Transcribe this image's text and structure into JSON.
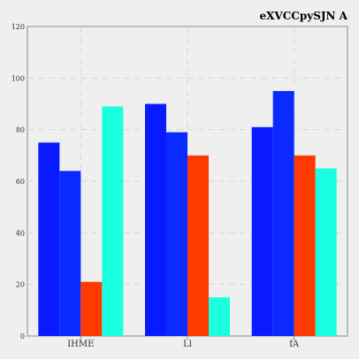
{
  "chart_data": {
    "type": "bar",
    "title": "eXVCCpySJN A",
    "xlabel": "",
    "ylabel": "",
    "categories": [
      "IHME",
      "Ll",
      "fA"
    ],
    "series": [
      {
        "values": [
          75,
          90,
          81
        ],
        "color": "#0a1aff"
      },
      {
        "values": [
          64,
          79,
          95
        ],
        "color": "#0a2aff"
      },
      {
        "values": [
          21,
          70,
          70
        ],
        "color": "#ff3a00"
      },
      {
        "values": [
          89,
          15,
          65
        ],
        "color": "#19ffe0"
      }
    ],
    "ylim": [
      0,
      120
    ],
    "yticks": [
      0,
      20,
      40,
      60,
      80,
      100,
      120
    ],
    "grid": true
  }
}
